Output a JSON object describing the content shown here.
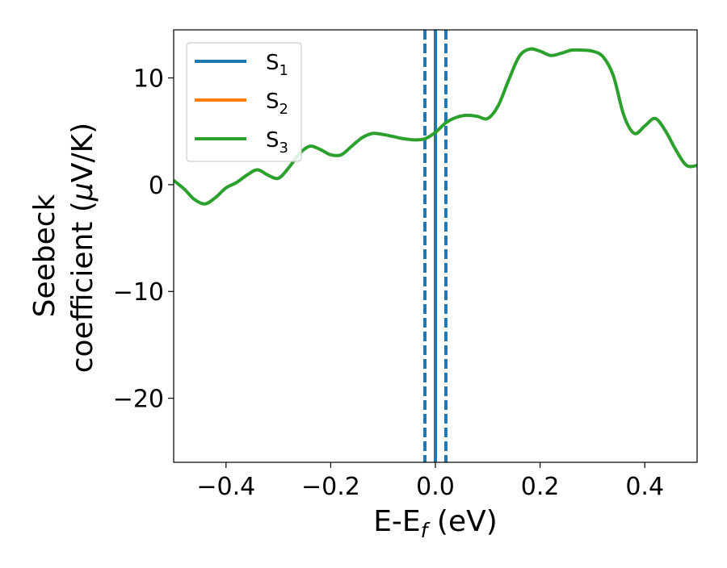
{
  "chart_data": {
    "type": "line",
    "xlabel": {
      "main": "E-E",
      "sub": "f",
      "unit": " (eV)"
    },
    "ylabel": {
      "line1": "Seebeck",
      "line2": "coefficient  (",
      "mu": "μ",
      "line2_rest": "V/K)"
    },
    "xlim": [
      -0.5,
      0.5
    ],
    "ylim": [
      -26,
      14.5
    ],
    "xticks": [
      -0.4,
      -0.2,
      0.0,
      0.2,
      0.4
    ],
    "xtick_labels": [
      "−0.4",
      "−0.2",
      "0.0",
      "0.2",
      "0.4"
    ],
    "yticks": [
      10,
      0,
      -10,
      -20
    ],
    "ytick_labels": [
      "10",
      "0",
      "−10",
      "−20"
    ],
    "grid": false,
    "legend_placement": "upper-left",
    "series": [
      {
        "name": "S",
        "sub": "1",
        "color": "#1f77b4"
      },
      {
        "name": "S",
        "sub": "2",
        "color": "#ff7f0e"
      },
      {
        "name": "S",
        "sub": "3",
        "color": "#2ca02c",
        "x": [
          -0.5,
          -0.48,
          -0.46,
          -0.44,
          -0.42,
          -0.4,
          -0.38,
          -0.36,
          -0.34,
          -0.32,
          -0.3,
          -0.28,
          -0.26,
          -0.24,
          -0.22,
          -0.2,
          -0.18,
          -0.16,
          -0.14,
          -0.12,
          -0.1,
          -0.08,
          -0.06,
          -0.04,
          -0.02,
          0.0,
          0.02,
          0.04,
          0.06,
          0.08,
          0.1,
          0.12,
          0.14,
          0.16,
          0.18,
          0.2,
          0.22,
          0.24,
          0.26,
          0.28,
          0.3,
          0.32,
          0.34,
          0.36,
          0.38,
          0.4,
          0.42,
          0.44,
          0.46,
          0.48,
          0.5
        ],
        "y": [
          0.4,
          -0.4,
          -1.4,
          -1.8,
          -1.2,
          -0.3,
          0.2,
          0.9,
          1.4,
          0.9,
          0.6,
          1.6,
          2.9,
          3.6,
          3.3,
          2.8,
          2.8,
          3.6,
          4.4,
          4.8,
          4.7,
          4.5,
          4.3,
          4.2,
          4.3,
          4.9,
          5.8,
          6.3,
          6.5,
          6.4,
          6.2,
          7.4,
          9.8,
          12.0,
          12.7,
          12.5,
          12.1,
          12.3,
          12.6,
          12.6,
          12.5,
          12.0,
          10.2,
          6.5,
          4.8,
          5.5,
          6.2,
          5.0,
          3.2,
          1.8,
          1.8
        ]
      }
    ],
    "vlines": [
      {
        "x": -0.02,
        "style": "dashed",
        "color": "#1f77b4"
      },
      {
        "x": 0.0,
        "style": "solid",
        "color": "#000000"
      },
      {
        "x": 0.0,
        "style": "solid",
        "color": "#1f77b4"
      },
      {
        "x": 0.02,
        "style": "dashed",
        "color": "#1f77b4"
      }
    ]
  }
}
